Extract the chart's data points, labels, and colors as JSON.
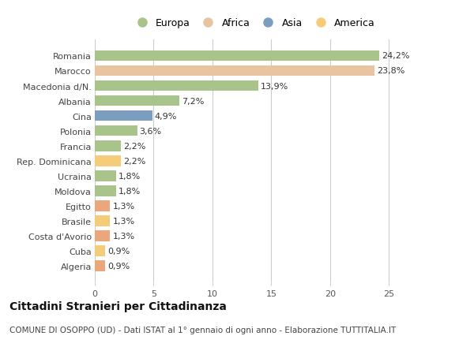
{
  "categories": [
    "Algeria",
    "Cuba",
    "Costa d'Avorio",
    "Brasile",
    "Egitto",
    "Moldova",
    "Ucraina",
    "Rep. Dominicana",
    "Francia",
    "Polonia",
    "Cina",
    "Albania",
    "Macedonia d/N.",
    "Marocco",
    "Romania"
  ],
  "values": [
    0.9,
    0.9,
    1.3,
    1.3,
    1.3,
    1.8,
    1.8,
    2.2,
    2.2,
    3.6,
    4.9,
    7.2,
    13.9,
    23.8,
    24.2
  ],
  "labels": [
    "0,9%",
    "0,9%",
    "1,3%",
    "1,3%",
    "1,3%",
    "1,8%",
    "1,8%",
    "2,2%",
    "2,2%",
    "3,6%",
    "4,9%",
    "7,2%",
    "13,9%",
    "23,8%",
    "24,2%"
  ],
  "colors": [
    "#E8A87C",
    "#F5CC7A",
    "#E8A87C",
    "#F5CC7A",
    "#E8A87C",
    "#A8C48A",
    "#A8C48A",
    "#F5CC7A",
    "#A8C48A",
    "#A8C48A",
    "#7B9DC0",
    "#A8C48A",
    "#A8C48A",
    "#E8C4A0",
    "#A8C48A"
  ],
  "legend_labels": [
    "Europa",
    "Africa",
    "Asia",
    "America"
  ],
  "legend_colors": [
    "#A8C48A",
    "#E8C4A0",
    "#7B9DC0",
    "#F5CC7A"
  ],
  "title": "Cittadini Stranieri per Cittadinanza",
  "subtitle": "COMUNE DI OSOPPO (UD) - Dati ISTAT al 1° gennaio di ogni anno - Elaborazione TUTTITALIA.IT",
  "xlim": [
    0,
    27
  ],
  "xticks": [
    0,
    5,
    10,
    15,
    20,
    25
  ],
  "bg_color": "#FFFFFF",
  "grid_color": "#CCCCCC",
  "bar_height": 0.72,
  "label_fontsize": 8,
  "tick_fontsize": 8,
  "title_fontsize": 10,
  "subtitle_fontsize": 7.5
}
